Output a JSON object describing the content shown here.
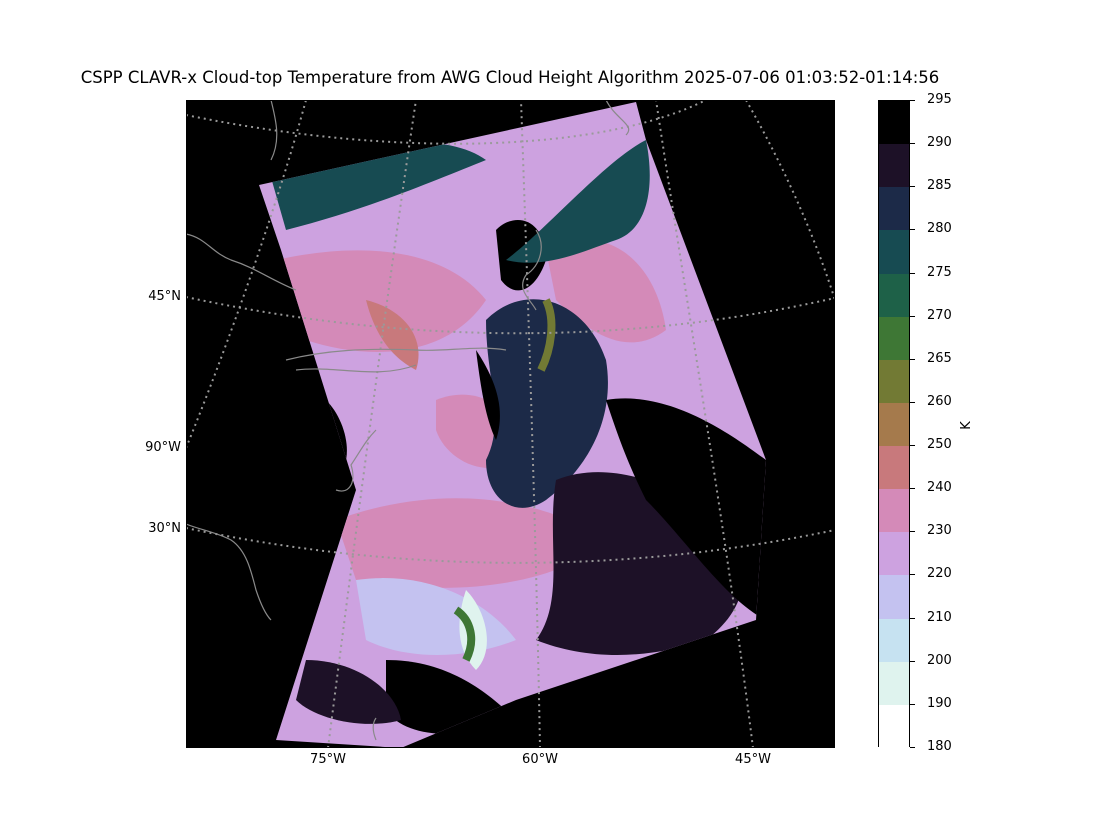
{
  "figure": {
    "title": "CSPP CLAVR-x Cloud-top Temperature from AWG Cloud Height Algorithm 2025-07-06 01:03:52-01:14:56"
  },
  "map": {
    "background_color": "#000000",
    "coastline_color": "#8a8a8a",
    "gridline_color": "#9a9a9a",
    "gridline_style": "dotted",
    "latitude_labels": [
      "45°N",
      "90°W",
      "30°N"
    ],
    "longitude_labels": [
      "75°W",
      "60°W",
      "45°W"
    ]
  },
  "colorbar": {
    "unit": "K",
    "tick_labels": [
      "295",
      "290",
      "285",
      "280",
      "275",
      "270",
      "265",
      "260",
      "250",
      "240",
      "230",
      "220",
      "210",
      "200",
      "190",
      "180"
    ],
    "bins": [
      {
        "range": "290-295",
        "color": "#000000"
      },
      {
        "range": "285-290",
        "color": "#1d1127"
      },
      {
        "range": "280-285",
        "color": "#1c2a48"
      },
      {
        "range": "275-280",
        "color": "#174b52"
      },
      {
        "range": "270-275",
        "color": "#1e6148"
      },
      {
        "range": "265-270",
        "color": "#3e7735"
      },
      {
        "range": "260-265",
        "color": "#727a34"
      },
      {
        "range": "250-260",
        "color": "#a57a4c"
      },
      {
        "range": "240-250",
        "color": "#c8797c"
      },
      {
        "range": "230-240",
        "color": "#d48ab8"
      },
      {
        "range": "220-230",
        "color": "#cda2e0"
      },
      {
        "range": "210-220",
        "color": "#c4c2f0"
      },
      {
        "range": "200-210",
        "color": "#c6e2f1"
      },
      {
        "range": "190-200",
        "color": "#dff3ee"
      },
      {
        "range": "180-190",
        "color": "#ffffff"
      }
    ]
  }
}
